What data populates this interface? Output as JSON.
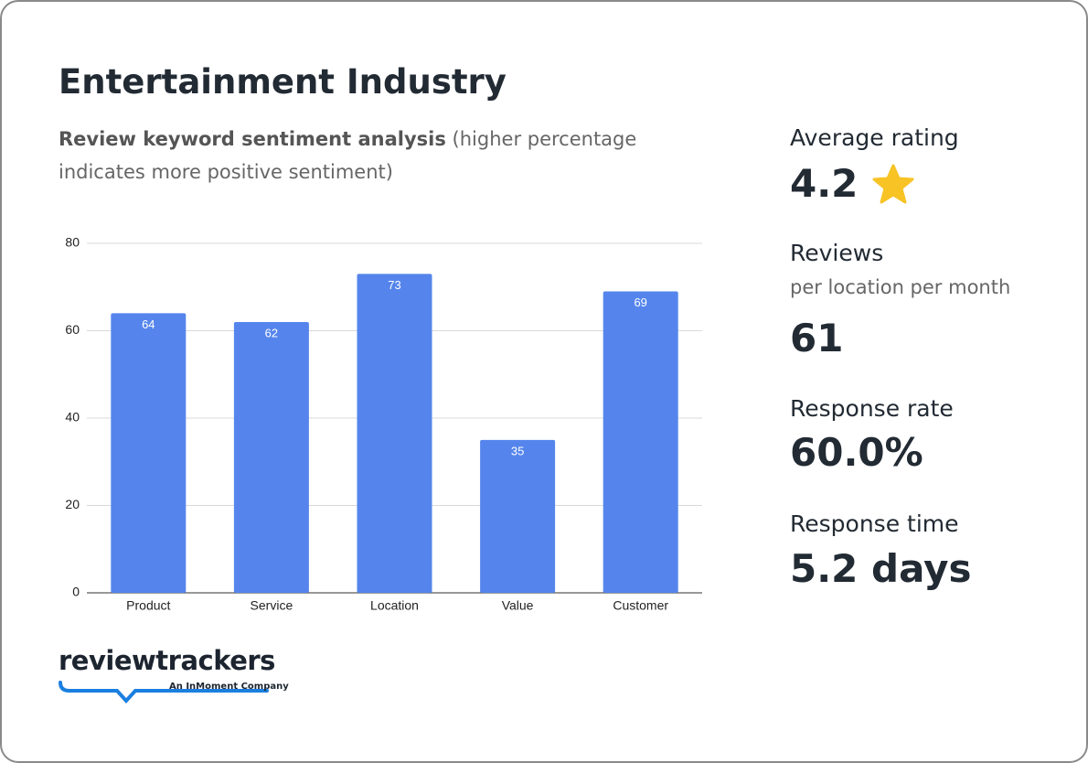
{
  "header": {
    "title": "Entertainment Industry",
    "subtitle_bold": "Review keyword sentiment analysis",
    "subtitle": "(higher percentage indicates more positive sentiment)"
  },
  "chart_data": {
    "type": "bar",
    "categories": [
      "Product",
      "Service",
      "Location",
      "Value",
      "Customer"
    ],
    "values": [
      64,
      62,
      73,
      35,
      69
    ],
    "color": "#5585ec",
    "ylim": [
      0,
      80
    ],
    "yticks": [
      0,
      20,
      40,
      60,
      80
    ],
    "grid": true
  },
  "stats": [
    {
      "label": "Average rating",
      "value": "4.2"
    },
    {
      "label": "Reviews",
      "sublabel": "per location per month",
      "value": "61"
    },
    {
      "label": "Response rate",
      "value": "60.0%"
    },
    {
      "label": "Response time",
      "value": "5.2 days"
    }
  ],
  "logo": {
    "name": "reviewtrackers",
    "tagline": "An InMoment Company"
  }
}
